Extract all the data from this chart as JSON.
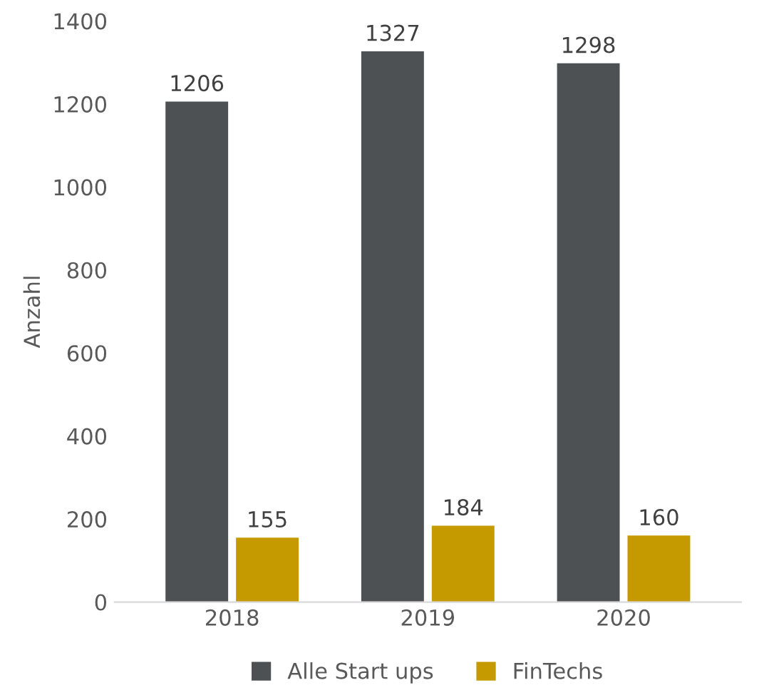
{
  "chart_data": {
    "type": "bar",
    "ylabel": "Anzahl",
    "categories": [
      "2018",
      "2019",
      "2020"
    ],
    "series": [
      {
        "name": "Alle Start ups",
        "color": "#4d5154",
        "values": [
          1206,
          1327,
          1298
        ]
      },
      {
        "name": "FinTechs",
        "color": "#c49a00",
        "values": [
          155,
          184,
          160
        ]
      }
    ],
    "ylim": [
      0,
      1400
    ],
    "yticks": [
      0,
      200,
      400,
      600,
      800,
      1000,
      1200,
      1400
    ],
    "grid": false,
    "legend": "bottom",
    "data_labels": true
  }
}
